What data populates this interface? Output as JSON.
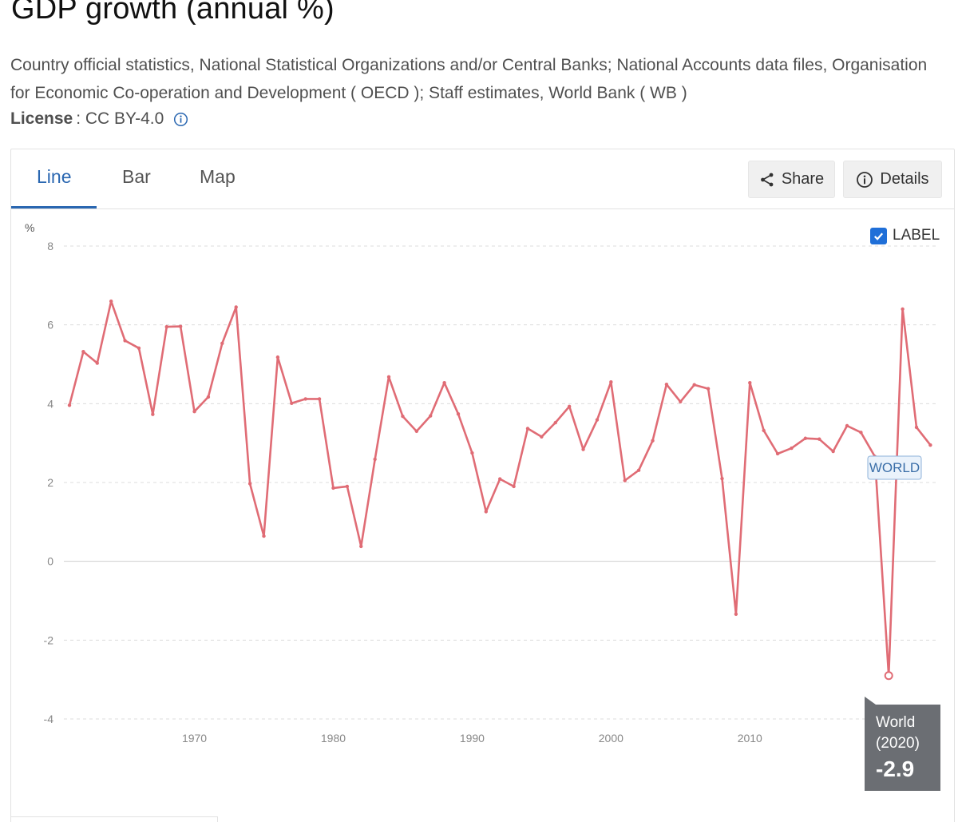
{
  "header": {
    "title": "GDP growth (annual %)",
    "source": "Country official statistics, National Statistical Organizations and/or Central Banks; National Accounts data files, Organisation for Economic Co-operation and Development ( OECD ); Staff estimates, World Bank ( WB )",
    "license_label": "License",
    "license_value": ": CC BY-4.0"
  },
  "tabs": [
    {
      "label": "Line",
      "active": true
    },
    {
      "label": "Bar",
      "active": false
    },
    {
      "label": "Map",
      "active": false
    }
  ],
  "toolbar": {
    "share_label": "Share",
    "details_label": "Details"
  },
  "label_toggle": {
    "label": "LABEL",
    "checked": true
  },
  "colors": {
    "accent": "#2a67b1",
    "line": "#e06c75",
    "tooltip_bg": "#6b6e73",
    "checkbox": "#1f6fd8"
  },
  "chart_data": {
    "type": "line",
    "ylabel": "%",
    "ylim": [
      -4,
      8
    ],
    "yticks": [
      "8",
      "6",
      "4",
      "2",
      "0",
      "-2",
      "-4"
    ],
    "xlim": [
      1960,
      2023
    ],
    "xticks": [
      "1970",
      "1980",
      "1990",
      "2000",
      "2010",
      "2020"
    ],
    "grid": true,
    "series": [
      {
        "name": "WORLD",
        "x": [
          1961,
          1962,
          1963,
          1964,
          1965,
          1966,
          1967,
          1968,
          1969,
          1970,
          1971,
          1972,
          1973,
          1974,
          1975,
          1976,
          1977,
          1978,
          1979,
          1980,
          1981,
          1982,
          1983,
          1984,
          1985,
          1986,
          1987,
          1988,
          1989,
          1990,
          1991,
          1992,
          1993,
          1994,
          1995,
          1996,
          1997,
          1998,
          1999,
          2000,
          2001,
          2002,
          2003,
          2004,
          2005,
          2006,
          2007,
          2008,
          2009,
          2010,
          2011,
          2012,
          2013,
          2014,
          2015,
          2016,
          2017,
          2018,
          2019,
          2020,
          2021,
          2022,
          2023
        ],
        "values": [
          3.96,
          5.32,
          5.03,
          6.6,
          5.6,
          5.41,
          3.73,
          5.95,
          5.96,
          3.8,
          4.17,
          5.53,
          6.45,
          1.97,
          0.64,
          5.18,
          4.01,
          4.12,
          4.12,
          1.86,
          1.9,
          0.38,
          2.59,
          4.68,
          3.68,
          3.3,
          3.69,
          4.53,
          3.74,
          2.75,
          1.26,
          2.09,
          1.9,
          3.37,
          3.16,
          3.52,
          3.93,
          2.84,
          3.59,
          4.55,
          2.05,
          2.31,
          3.06,
          4.49,
          4.05,
          4.48,
          4.38,
          2.1,
          -1.34,
          4.53,
          3.32,
          2.73,
          2.87,
          3.12,
          3.1,
          2.79,
          3.44,
          3.27,
          2.66,
          -2.9,
          6.4,
          3.4,
          2.95
        ]
      }
    ],
    "series_label": "WORLD",
    "tooltip": {
      "series": "World",
      "year": "(2020)",
      "value": "-2.9"
    },
    "xtick_last_visible": "20"
  }
}
